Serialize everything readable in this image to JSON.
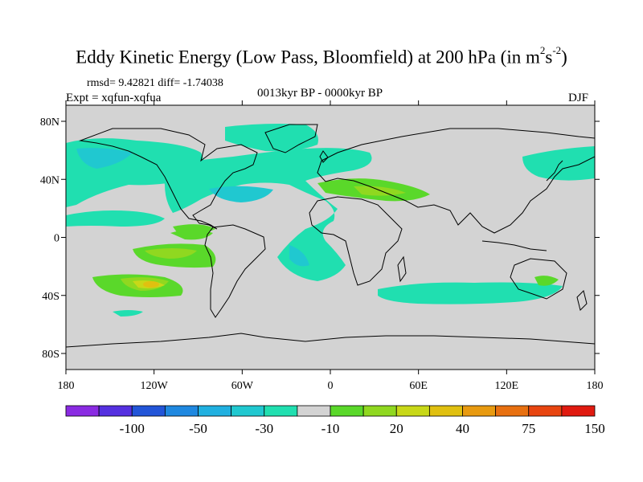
{
  "title": {
    "main": "Eddy Kinetic Energy (Low Pass, Bloomfield) at 200 hPa (in m",
    "sup1": "2",
    "mid": "s",
    "sup2": "-2",
    "close": ")"
  },
  "stats": "rmsd= 9.42821 diff= -1.74038",
  "experiment": "Expt = xqfun-xqfua",
  "period": "0013kyr BP - 0000kyr BP",
  "season": "DJF",
  "map": {
    "land_color": "#d3d3d3",
    "x_ticks": [
      "180",
      "120W",
      "60W",
      "0",
      "60E",
      "120E",
      "180"
    ],
    "y_ticks": [
      "80N",
      "40N",
      "0",
      "40S",
      "80S"
    ]
  },
  "colorbar": {
    "colors": [
      "#8a2be2",
      "#5530e0",
      "#2255d8",
      "#1f88e0",
      "#20b0e0",
      "#20c8d0",
      "#20dfb0",
      "#d3d3d3",
      "#5ad82a",
      "#90d820",
      "#c8d818",
      "#e0c010",
      "#e89a10",
      "#e87010",
      "#e84510",
      "#e01a10"
    ],
    "labels": [
      "-100",
      "-50",
      "-30",
      "-10",
      "20",
      "40",
      "75",
      "150"
    ]
  }
}
